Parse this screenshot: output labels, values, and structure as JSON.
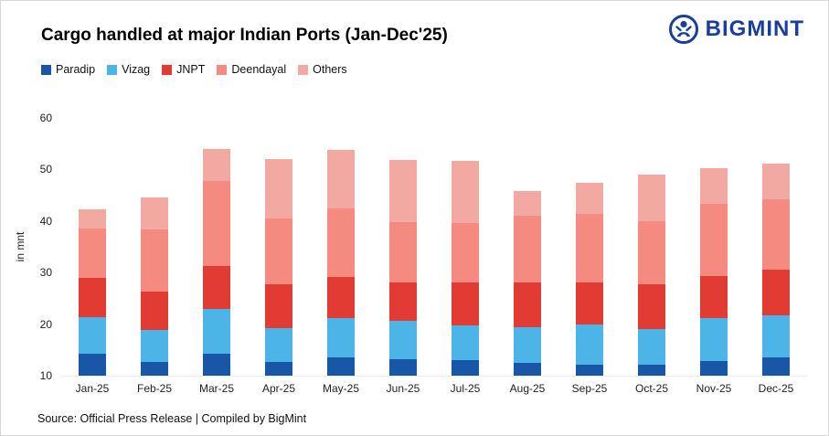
{
  "title": "Cargo handled at major Indian Ports (Jan-Dec'25)",
  "logo": {
    "text": "BIGMINT",
    "color": "#1a3e9e"
  },
  "source": "Source: Official Press Release | Compiled by BigMint",
  "chart_data": {
    "type": "bar",
    "stacked": true,
    "title": "Cargo handled at major Indian Ports (Jan-Dec'25)",
    "xlabel": "",
    "ylabel": "in mnt",
    "ylim": [
      10,
      60
    ],
    "y_ticks": [
      10,
      20,
      30,
      40,
      50,
      60
    ],
    "grid": false,
    "legend_position": "top-left",
    "categories": [
      "Jan-25",
      "Feb-25",
      "Mar-25",
      "Apr-25",
      "May-25",
      "Jun-25",
      "Jul-25",
      "Aug-25",
      "Sep-25",
      "Oct-25",
      "Nov-25",
      "Dec-25"
    ],
    "series": [
      {
        "name": "Paradip",
        "color": "#1757a6",
        "values": [
          14.2,
          12.6,
          14.2,
          12.6,
          13.6,
          13.2,
          13.0,
          12.4,
          12.1,
          12.2,
          12.8,
          13.5
        ]
      },
      {
        "name": "Vizag",
        "color": "#4db4e7",
        "values": [
          7.1,
          6.2,
          8.8,
          6.7,
          7.6,
          7.4,
          6.7,
          7.0,
          7.8,
          6.9,
          8.4,
          8.2
        ]
      },
      {
        "name": "JNPT",
        "color": "#e23b34",
        "values": [
          7.7,
          7.5,
          8.3,
          8.5,
          8.0,
          7.5,
          8.4,
          8.7,
          8.2,
          8.6,
          8.1,
          8.8
        ]
      },
      {
        "name": "Deendayal",
        "color": "#f58b80",
        "values": [
          9.5,
          12.0,
          16.5,
          12.7,
          13.3,
          11.7,
          11.6,
          12.9,
          13.2,
          12.3,
          14.0,
          13.7
        ]
      },
      {
        "name": "Others",
        "color": "#f2a9a2",
        "values": [
          3.8,
          6.2,
          6.2,
          11.5,
          11.3,
          12.0,
          12.0,
          4.8,
          6.2,
          9.0,
          7.0,
          7.0
        ]
      }
    ],
    "totals": [
      42.3,
      44.5,
      54.0,
      52.0,
      53.8,
      51.8,
      51.7,
      45.8,
      47.5,
      49.0,
      50.3,
      51.2
    ]
  }
}
